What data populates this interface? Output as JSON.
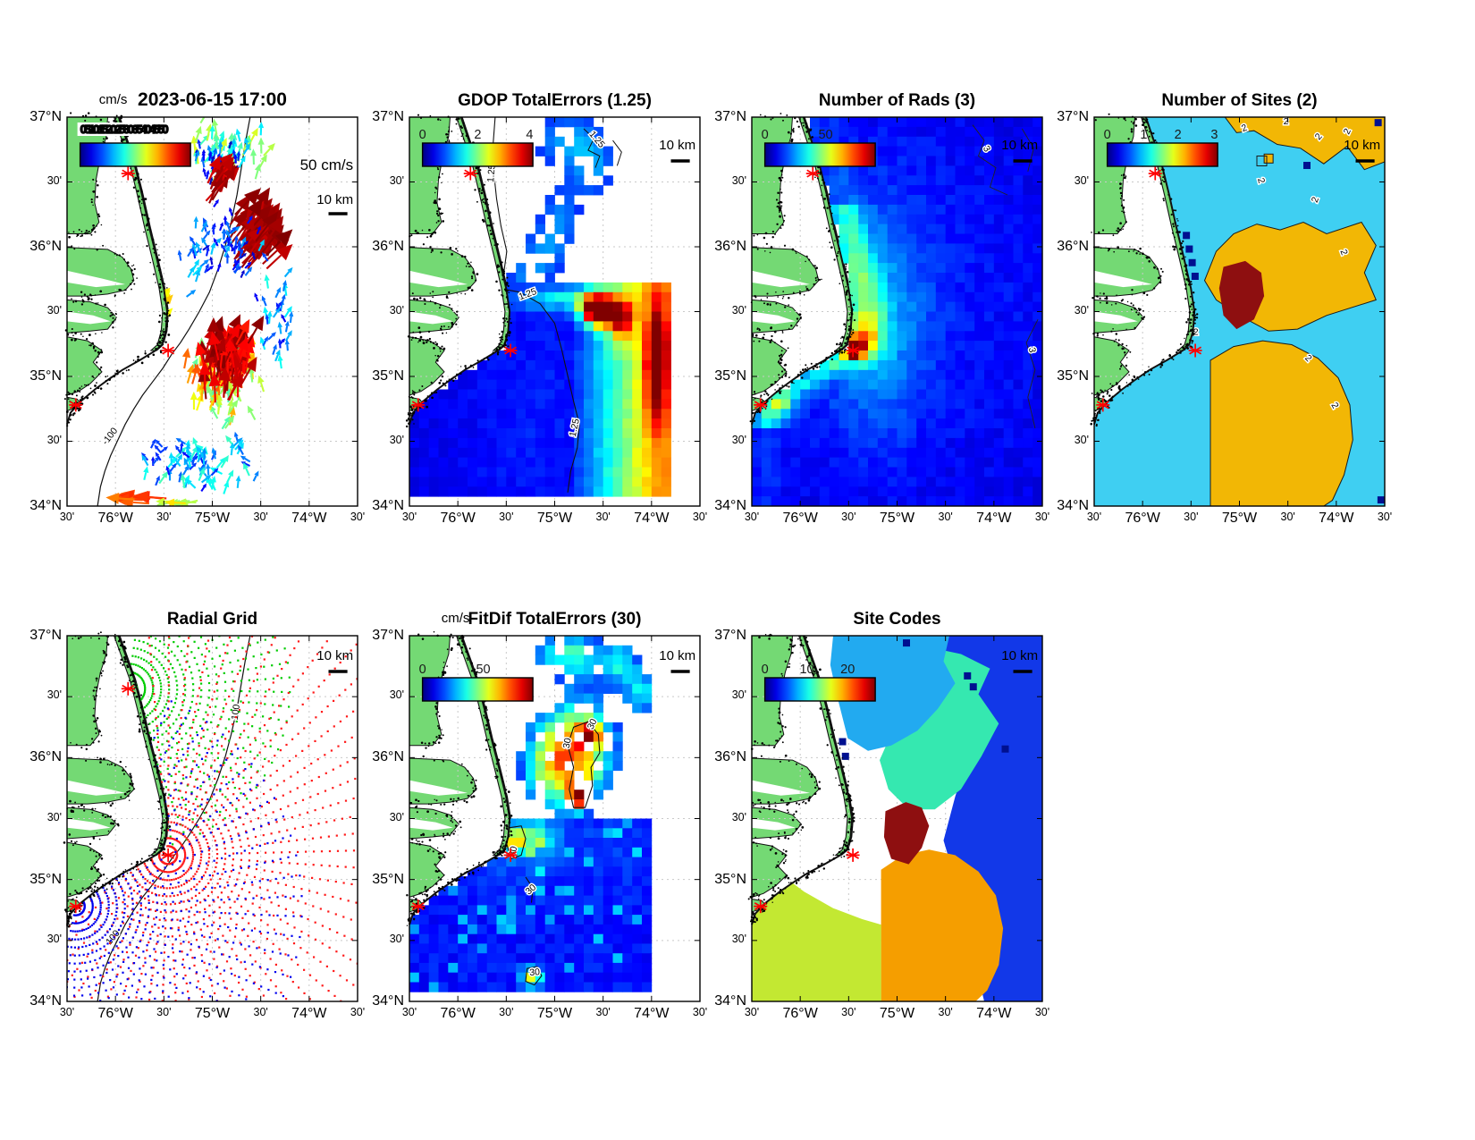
{
  "figure": {
    "background": "#ffffff"
  },
  "axes": {
    "y_labels": [
      "37°N",
      "30'",
      "36°N",
      "30'",
      "35°N",
      "30'",
      "34°N"
    ],
    "x_labels": [
      "30'",
      "76°W",
      "30'",
      "75°W",
      "30'",
      "74°W",
      "30'"
    ]
  },
  "colors": {
    "land": "#74d974",
    "water": "#ffffff",
    "coast": "#111111",
    "grid": "#c9c9c9",
    "site_marker": "#ff0000",
    "num_sites_palette": {
      "cyan": "#3fcff2",
      "gold": "#f2b705",
      "dark_red": "#8e0f10",
      "navy": "#001090"
    },
    "site_codes_palette": {
      "royal_blue": "#1238e8",
      "dodger_blue": "#22aaf0",
      "spring_green": "#35e8b0",
      "orange": "#f59e00",
      "yellow_green": "#c3e832",
      "dark_red": "#8e0f10",
      "navy": "#001090"
    }
  },
  "radial_sites": [
    {
      "name": "north-site",
      "dot_color": "#00cc00"
    },
    {
      "name": "cape-hatteras-site",
      "dot_color": "#ff1a1a"
    },
    {
      "name": "south-site",
      "dot_color": "#0000ee"
    }
  ],
  "panels": [
    {
      "id": "currents",
      "title": "2023-06-15 17:00",
      "colorbar": {
        "label": "cm/s",
        "ticks": [
          "0",
          "5",
          "10",
          "15",
          "20",
          "25",
          "30",
          "35",
          "40",
          "45",
          "50"
        ]
      },
      "vector_scale_label": "50 cm/s",
      "scale_label": "10 km",
      "contour_label": "-100"
    },
    {
      "id": "gdop",
      "title": "GDOP TotalErrors (1.25)",
      "colorbar": {
        "ticks": [
          "0",
          "2",
          "4"
        ]
      },
      "scale_label": "10 km",
      "contour_label": "1.25"
    },
    {
      "id": "numrads",
      "title": "Number of Rads (3)",
      "colorbar": {
        "ticks": [
          "0",
          "50"
        ]
      },
      "scale_label": "10 km",
      "contour_label": "3"
    },
    {
      "id": "numsites",
      "title": "Number of Sites (2)",
      "colorbar": {
        "ticks": [
          "0",
          "1",
          "2",
          "3"
        ]
      },
      "scale_label": "10 km",
      "contour_label": "2"
    },
    {
      "id": "radialgrid",
      "title": "Radial Grid",
      "scale_label": "10 km",
      "contour_label": "100"
    },
    {
      "id": "fitdif",
      "title": "FitDif TotalErrors (30)",
      "colorbar": {
        "label": "cm/s",
        "ticks": [
          "0",
          "50"
        ]
      },
      "scale_label": "10 km",
      "contour_label": "30"
    },
    {
      "id": "sitecodes",
      "title": "Site Codes",
      "colorbar": {
        "ticks": [
          "0",
          "10",
          "20"
        ]
      },
      "scale_label": "10 km"
    }
  ],
  "chart_data": [
    {
      "panel": "currents",
      "type": "heatmap",
      "subtype": "vector-field-map",
      "title": "2023-06-15 17:00",
      "x_axis": {
        "ticks": [
          "30'",
          "76°W",
          "30'",
          "75°W",
          "30'",
          "74°W",
          "30'"
        ],
        "range_deg_w": [
          76.5,
          73.5
        ]
      },
      "y_axis": {
        "ticks": [
          "37°N",
          "30'",
          "36°N",
          "30'",
          "35°N",
          "30'",
          "34°N"
        ],
        "range_deg_n": [
          34,
          37
        ]
      },
      "colorbar": {
        "units": "cm/s",
        "range": [
          0,
          50
        ]
      },
      "vector_scale": "50 cm/s",
      "distance_scale": "10 km",
      "bathymetry_contour_m": -100,
      "features": [
        "cyan northward vectors near 36.8N 75.1W",
        "dark red strong NE jet near 36.1N 75.0W",
        "red-orange high-speed eddy centered 35.2N 75.1W ringed by yellow-green",
        "weak blue vectors scattered offshore",
        "orange westward vectors along southern edge"
      ]
    },
    {
      "panel": "gdop",
      "type": "heatmap",
      "title": "GDOP TotalErrors (1.25)",
      "colorbar": {
        "range": [
          0,
          4
        ]
      },
      "contour_level": 1.25,
      "features": [
        "low GDOP (blue ~0.5-1) over core coverage south of Cape Hatteras",
        "GDOP rises cyan-yellow-red toward eastern edge near 74.4W",
        "dark red maxima near 35.5N 74.55W",
        "scattered blue-cyan patches north of 35.7N"
      ]
    },
    {
      "panel": "numrads",
      "type": "heatmap",
      "title": "Number of Rads (3)",
      "colorbar": {
        "range": [
          0,
          50
        ]
      },
      "features": [
        "mostly dark blue (few radials) offshore",
        "cyan band along the coast",
        "yellow-orange-red maximum at Cape Hatteras site",
        "small cyan-yellow spot at the southern site"
      ]
    },
    {
      "panel": "numsites",
      "type": "heatmap",
      "subtype": "categorical",
      "title": "Number of Sites (2)",
      "colorbar": {
        "range": [
          0,
          3
        ]
      },
      "contour_level": 2,
      "values": {
        "cyan": 2,
        "gold": 3,
        "dark_red": 4
      },
      "features": [
        "2-site coverage (cyan) dominant",
        "3-site gold regions offshore-east and south",
        "small dark-red 4-site patch near 35.6N 74.9W",
        "few navy single-site cells near the coast"
      ]
    },
    {
      "panel": "radialgrid",
      "type": "scatter",
      "title": "Radial Grid",
      "series": [
        {
          "name": "north site radial grid",
          "color": "green"
        },
        {
          "name": "Cape Hatteras site radial grid",
          "color": "red"
        },
        {
          "name": "south site radial grid",
          "color": "blue"
        }
      ],
      "bathymetry_contour_m": 100,
      "distance_scale": "10 km"
    },
    {
      "panel": "fitdif",
      "type": "heatmap",
      "title": "FitDif TotalErrors (30)",
      "colorbar": {
        "units": "cm/s",
        "range": [
          0,
          50
        ]
      },
      "contour_level": 30,
      "features": [
        "blue (<20 cm/s) over most of the coverage",
        "red / dark-red maxima (>40) near 35.9-36.1N 74.9W",
        "yellow spot at Cape Hatteras point",
        "yellow spot at the southern edge"
      ]
    },
    {
      "panel": "sitecodes",
      "type": "heatmap",
      "subtype": "categorical",
      "title": "Site Codes",
      "colorbar": {
        "range": [
          0,
          26
        ]
      },
      "features": [
        "light-blue region north",
        "turquoise region northeast",
        "dark blue region east",
        "dark-red central patch",
        "orange region south-central",
        "yellow-green region southwest"
      ]
    }
  ]
}
